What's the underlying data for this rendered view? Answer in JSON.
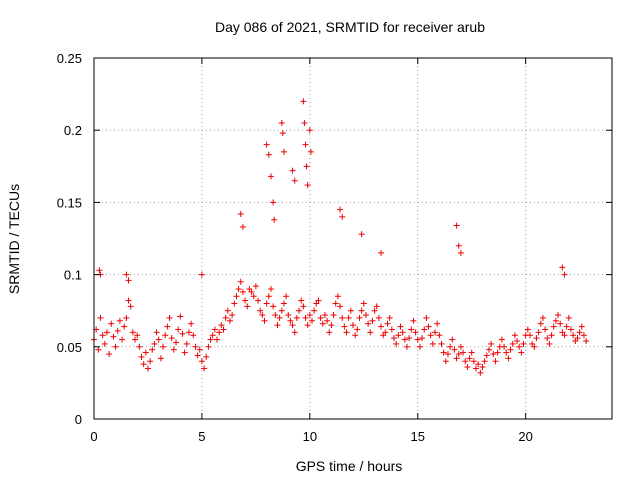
{
  "chart_data": {
    "type": "scatter",
    "title": "Day 086 of 2021, SRMTID for receiver arub",
    "xlabel": "GPS time / hours",
    "ylabel": "SRMTID / TECUs",
    "xlim": [
      0,
      24
    ],
    "ylim": [
      0,
      0.25
    ],
    "xticks": [
      0,
      5,
      10,
      15,
      20
    ],
    "xtick_labels": [
      "0",
      "5",
      "10",
      "15",
      "20"
    ],
    "yticks": [
      0,
      0.05,
      0.1,
      0.15,
      0.2,
      0.25
    ],
    "ytick_labels": [
      "0",
      "0.05",
      "0.1",
      "0.15",
      "0.2",
      "0.25"
    ],
    "grid": true,
    "marker": "+",
    "color": "#ee0000",
    "series": [
      {
        "name": "SRMTID arub",
        "x": [
          0.0,
          0.1,
          0.2,
          0.3,
          0.4,
          0.5,
          0.6,
          0.7,
          0.8,
          0.9,
          1.0,
          1.1,
          1.2,
          1.3,
          1.4,
          1.5,
          1.6,
          1.7,
          1.8,
          1.9,
          2.0,
          2.1,
          2.2,
          2.3,
          2.4,
          2.5,
          2.6,
          2.7,
          2.8,
          2.9,
          3.0,
          3.1,
          3.2,
          3.3,
          3.4,
          3.5,
          3.6,
          3.7,
          3.8,
          3.9,
          4.0,
          4.1,
          4.2,
          4.3,
          4.4,
          4.5,
          4.6,
          4.7,
          4.8,
          4.9,
          5.0,
          5.1,
          5.2,
          5.3,
          5.4,
          5.5,
          5.6,
          5.7,
          5.8,
          5.9,
          6.0,
          6.1,
          6.2,
          6.3,
          6.4,
          6.5,
          6.6,
          6.7,
          6.8,
          6.9,
          7.0,
          7.1,
          7.2,
          7.3,
          7.4,
          7.5,
          7.6,
          7.7,
          7.8,
          7.9,
          8.0,
          8.1,
          8.2,
          8.3,
          8.4,
          8.5,
          8.6,
          8.7,
          8.8,
          8.9,
          9.0,
          9.1,
          9.2,
          9.3,
          9.4,
          9.5,
          9.6,
          9.7,
          9.8,
          9.9,
          10.0,
          10.1,
          10.2,
          10.3,
          10.4,
          10.5,
          10.6,
          10.7,
          10.8,
          10.9,
          11.0,
          11.1,
          11.2,
          11.3,
          11.4,
          11.5,
          11.6,
          11.7,
          11.8,
          11.9,
          12.0,
          12.1,
          12.2,
          12.3,
          12.4,
          12.5,
          12.6,
          12.7,
          12.8,
          12.9,
          13.0,
          13.1,
          13.2,
          13.3,
          13.4,
          13.5,
          13.6,
          13.7,
          13.8,
          13.9,
          14.0,
          14.1,
          14.2,
          14.3,
          14.4,
          14.5,
          14.6,
          14.7,
          14.8,
          14.9,
          15.0,
          15.1,
          15.2,
          15.3,
          15.4,
          15.5,
          15.6,
          15.7,
          15.8,
          15.9,
          16.0,
          16.1,
          16.2,
          16.3,
          16.4,
          16.5,
          16.6,
          16.7,
          16.8,
          16.9,
          17.0,
          17.1,
          17.2,
          17.3,
          17.4,
          17.5,
          17.6,
          17.7,
          17.8,
          17.9,
          18.0,
          18.1,
          18.2,
          18.3,
          18.4,
          18.5,
          18.6,
          18.7,
          18.8,
          18.9,
          19.0,
          19.1,
          19.2,
          19.3,
          19.4,
          19.5,
          19.6,
          19.7,
          19.8,
          19.9,
          20.0,
          20.1,
          20.2,
          20.3,
          20.4,
          20.5,
          20.6,
          20.7,
          20.8,
          20.9,
          21.0,
          21.1,
          21.2,
          21.3,
          21.4,
          21.5,
          21.6,
          21.7,
          21.8,
          21.9,
          22.0,
          22.1,
          22.2,
          22.3,
          22.4,
          22.5,
          22.6,
          22.7,
          22.8,
          0.25,
          0.3,
          1.5,
          1.6,
          5.0,
          6.8,
          6.9,
          8.0,
          8.1,
          8.2,
          8.3,
          8.35,
          8.7,
          8.75,
          8.8,
          9.2,
          9.3,
          9.7,
          9.75,
          9.8,
          9.85,
          9.9,
          10.0,
          10.05,
          11.4,
          11.5,
          12.4,
          13.3,
          16.8,
          16.9,
          17.0,
          21.7,
          21.8
        ],
        "y": [
          0.055,
          0.062,
          0.048,
          0.07,
          0.058,
          0.052,
          0.06,
          0.045,
          0.066,
          0.057,
          0.05,
          0.061,
          0.068,
          0.055,
          0.064,
          0.07,
          0.082,
          0.078,
          0.06,
          0.055,
          0.058,
          0.05,
          0.043,
          0.038,
          0.046,
          0.035,
          0.04,
          0.048,
          0.052,
          0.06,
          0.055,
          0.042,
          0.05,
          0.058,
          0.064,
          0.07,
          0.056,
          0.048,
          0.053,
          0.062,
          0.071,
          0.059,
          0.046,
          0.052,
          0.06,
          0.066,
          0.058,
          0.05,
          0.044,
          0.048,
          0.04,
          0.035,
          0.043,
          0.05,
          0.055,
          0.058,
          0.062,
          0.055,
          0.06,
          0.065,
          0.062,
          0.07,
          0.075,
          0.068,
          0.072,
          0.08,
          0.085,
          0.09,
          0.095,
          0.088,
          0.082,
          0.078,
          0.09,
          0.088,
          0.085,
          0.092,
          0.082,
          0.075,
          0.072,
          0.068,
          0.08,
          0.085,
          0.09,
          0.078,
          0.072,
          0.065,
          0.07,
          0.075,
          0.08,
          0.085,
          0.072,
          0.068,
          0.065,
          0.06,
          0.07,
          0.075,
          0.082,
          0.078,
          0.07,
          0.065,
          0.072,
          0.068,
          0.075,
          0.08,
          0.082,
          0.07,
          0.066,
          0.072,
          0.068,
          0.06,
          0.065,
          0.072,
          0.08,
          0.085,
          0.078,
          0.07,
          0.064,
          0.06,
          0.07,
          0.075,
          0.065,
          0.058,
          0.062,
          0.07,
          0.075,
          0.08,
          0.072,
          0.066,
          0.06,
          0.068,
          0.075,
          0.078,
          0.07,
          0.064,
          0.058,
          0.06,
          0.066,
          0.07,
          0.062,
          0.056,
          0.052,
          0.058,
          0.064,
          0.06,
          0.055,
          0.05,
          0.056,
          0.062,
          0.068,
          0.06,
          0.055,
          0.05,
          0.056,
          0.062,
          0.07,
          0.064,
          0.058,
          0.052,
          0.06,
          0.066,
          0.058,
          0.052,
          0.046,
          0.04,
          0.045,
          0.05,
          0.055,
          0.048,
          0.042,
          0.045,
          0.05,
          0.046,
          0.04,
          0.036,
          0.042,
          0.046,
          0.04,
          0.035,
          0.038,
          0.032,
          0.036,
          0.04,
          0.044,
          0.048,
          0.052,
          0.045,
          0.04,
          0.046,
          0.05,
          0.055,
          0.05,
          0.046,
          0.042,
          0.048,
          0.052,
          0.058,
          0.054,
          0.05,
          0.046,
          0.052,
          0.058,
          0.062,
          0.058,
          0.052,
          0.05,
          0.056,
          0.06,
          0.066,
          0.07,
          0.062,
          0.056,
          0.052,
          0.058,
          0.064,
          0.068,
          0.072,
          0.066,
          0.06,
          0.058,
          0.064,
          0.07,
          0.062,
          0.058,
          0.054,
          0.056,
          0.06,
          0.064,
          0.058,
          0.054,
          0.103,
          0.1,
          0.1,
          0.096,
          0.1,
          0.142,
          0.133,
          0.19,
          0.183,
          0.168,
          0.15,
          0.138,
          0.205,
          0.198,
          0.185,
          0.172,
          0.165,
          0.22,
          0.205,
          0.19,
          0.175,
          0.162,
          0.2,
          0.185,
          0.145,
          0.14,
          0.128,
          0.115,
          0.134,
          0.12,
          0.115,
          0.105,
          0.1
        ],
        "marker": "+"
      }
    ]
  }
}
